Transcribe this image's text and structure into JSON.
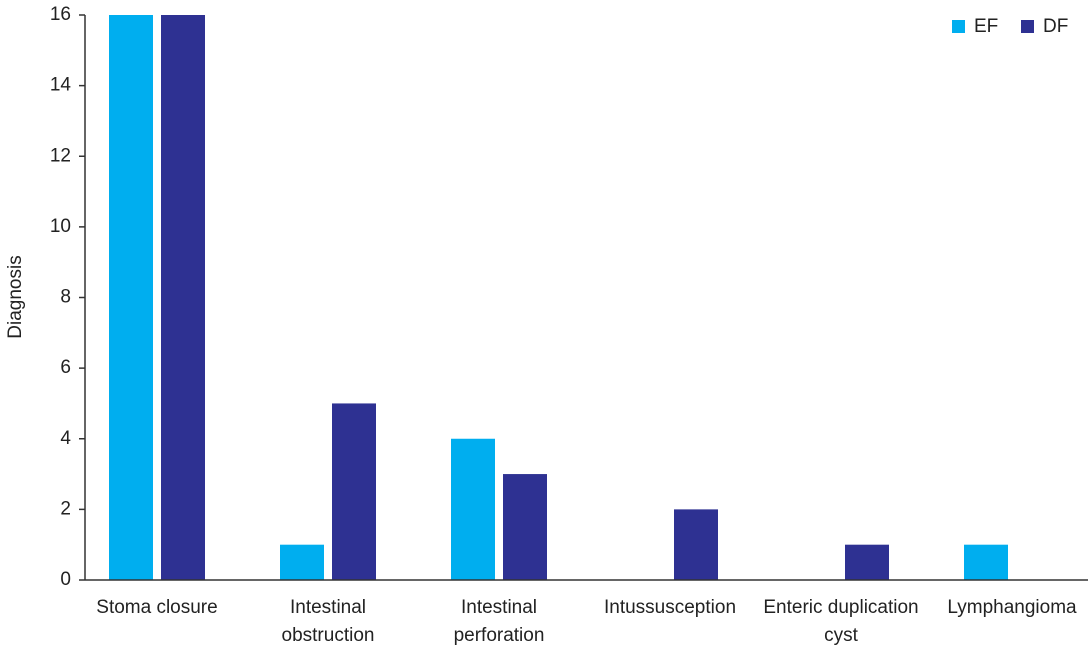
{
  "chart_data": {
    "type": "bar",
    "y_label": "Diagnosis",
    "categories": [
      "Stoma closure",
      "Intestinal obstruction",
      "Intestinal perforation",
      "Intussusception",
      "Enteric duplication cyst",
      "Lymphangioma"
    ],
    "series": [
      {
        "name": "EF",
        "color": "#00aeef",
        "values": [
          16,
          1,
          4,
          0,
          0,
          1
        ]
      },
      {
        "name": "DF",
        "color": "#2e3192",
        "values": [
          16,
          5,
          3,
          2,
          1,
          0
        ]
      }
    ],
    "ylim": [
      0,
      16
    ],
    "yticks": [
      0,
      2,
      4,
      6,
      8,
      10,
      12,
      14,
      16
    ],
    "legend": "top-right"
  }
}
